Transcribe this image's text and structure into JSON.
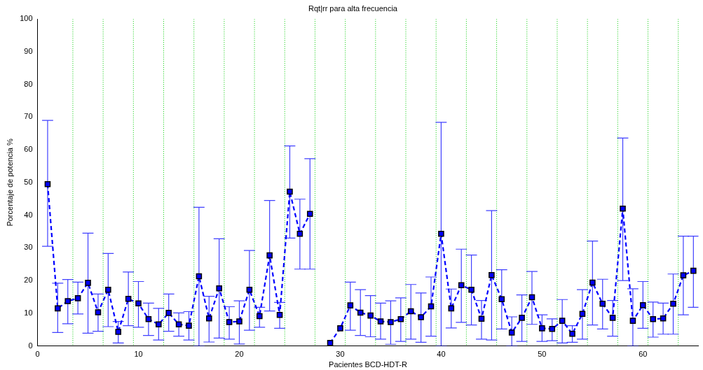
{
  "chart_data": {
    "type": "line",
    "title": "Rqt|rr para alta frecuencia",
    "xlabel": "Pacientes BCD-HDT-R",
    "ylabel": "Porcentaje de potencia %",
    "x": [
      1,
      2,
      3,
      4,
      5,
      6,
      7,
      8,
      9,
      10,
      11,
      12,
      13,
      14,
      15,
      16,
      17,
      18,
      19,
      20,
      21,
      22,
      23,
      24,
      25,
      26,
      27,
      28,
      29,
      30,
      31,
      32,
      33,
      34,
      35,
      36,
      37,
      38,
      39,
      40,
      41,
      42,
      43,
      44,
      45,
      46,
      47,
      48,
      49,
      50,
      51,
      52,
      53,
      54,
      55,
      56,
      57,
      58,
      59,
      60,
      61,
      62,
      63,
      64,
      65
    ],
    "series": [
      {
        "color": "#0000ff",
        "marker": "square",
        "line_style": "dashed",
        "values": [
          49.5,
          11.5,
          13.7,
          14.6,
          19.3,
          10.3,
          17.2,
          4.3,
          14.4,
          13.0,
          8.2,
          6.6,
          10.1,
          6.6,
          6.2,
          21.3,
          8.4,
          17.6,
          7.3,
          7.5,
          17.2,
          9.1,
          27.7,
          9.5,
          47.2,
          34.3,
          40.4,
          null,
          0.9,
          5.4,
          12.4,
          10.2,
          9.3,
          7.5,
          7.3,
          8.2,
          10.6,
          8.8,
          12.1,
          34.3,
          11.5,
          18.6,
          17.2,
          8.3,
          21.7,
          14.3,
          4.1,
          8.6,
          14.9,
          5.4,
          5.2,
          7.7,
          3.7,
          9.8,
          19.4,
          12.9,
          8.6,
          42.0,
          7.7,
          12.5,
          8.2,
          8.4,
          12.9,
          21.6,
          23.0
        ],
        "errors": [
          [
            30.5,
            69.0
          ],
          [
            4.1,
            19.2
          ],
          [
            6.8,
            20.3
          ],
          [
            9.8,
            19.5
          ],
          [
            3.9,
            34.5
          ],
          [
            4.5,
            15.9
          ],
          [
            5.9,
            28.3
          ],
          [
            0.9,
            7.5
          ],
          [
            6.2,
            22.6
          ],
          [
            5.7,
            19.7
          ],
          [
            3.2,
            13.1
          ],
          [
            1.8,
            11.5
          ],
          [
            4.5,
            15.9
          ],
          [
            3.0,
            10.1
          ],
          [
            1.8,
            10.5
          ],
          [
            0,
            42.4
          ],
          [
            1.2,
            15.2
          ],
          [
            2.4,
            32.8
          ],
          [
            2.1,
            12.0
          ],
          [
            0.6,
            13.8
          ],
          [
            4.8,
            29.2
          ],
          [
            5.7,
            11.8
          ],
          [
            10.7,
            44.5
          ],
          [
            5.4,
            13.3
          ],
          [
            33.0,
            61.2
          ],
          [
            23.5,
            44.9
          ],
          [
            23.5,
            57.3
          ],
          null,
          null,
          null,
          [
            4.8,
            19.5
          ],
          [
            3.2,
            17.2
          ],
          [
            2.8,
            15.4
          ],
          [
            2.1,
            13.1
          ],
          [
            0.5,
            13.8
          ],
          [
            1.4,
            14.7
          ],
          [
            2.1,
            18.8
          ],
          [
            1.1,
            16.2
          ],
          [
            3.0,
            21.1
          ],
          [
            0,
            68.4
          ],
          [
            5.5,
            17.4
          ],
          [
            7.2,
            29.6
          ],
          [
            6.4,
            27.8
          ],
          [
            2.1,
            13.9
          ],
          [
            1.8,
            41.4
          ],
          [
            5.2,
            23.3
          ],
          [
            0,
            8.9
          ],
          [
            1.4,
            15.6
          ],
          [
            6.6,
            22.8
          ],
          [
            1.4,
            9.5
          ],
          [
            1.6,
            8.3
          ],
          [
            0.9,
            14.2
          ],
          [
            1.1,
            6.2
          ],
          [
            2.1,
            17.2
          ],
          [
            6.4,
            32.1
          ],
          [
            5.2,
            20.4
          ],
          [
            3.0,
            13.9
          ],
          [
            20.0,
            63.6
          ],
          [
            0,
            17.5
          ],
          [
            5.4,
            19.7
          ],
          [
            2.7,
            13.4
          ],
          [
            3.6,
            13.1
          ],
          [
            3.6,
            22.0
          ],
          [
            9.5,
            33.6
          ],
          [
            11.8,
            33.6
          ]
        ]
      }
    ],
    "xlim": [
      0,
      65.5
    ],
    "xticks": [
      0,
      10,
      20,
      30,
      40,
      50,
      60
    ],
    "ylim": [
      0,
      100
    ],
    "yticks": [
      0,
      10,
      20,
      30,
      40,
      50,
      60,
      70,
      80,
      90,
      100
    ],
    "grid": false,
    "legend": false,
    "ref_lines": [
      {
        "axis": "x",
        "value": 3.5,
        "color": "#00cc00",
        "line_style": "dotted"
      },
      {
        "axis": "x",
        "value": 6.5,
        "color": "#00cc00",
        "line_style": "dotted"
      },
      {
        "axis": "x",
        "value": 9.5,
        "color": "#00cc00",
        "line_style": "dotted"
      },
      {
        "axis": "x",
        "value": 12.5,
        "color": "#00cc00",
        "line_style": "dotted"
      },
      {
        "axis": "x",
        "value": 15.5,
        "color": "#00cc00",
        "line_style": "dotted"
      },
      {
        "axis": "x",
        "value": 18.5,
        "color": "#00cc00",
        "line_style": "dotted"
      },
      {
        "axis": "x",
        "value": 21.5,
        "color": "#00cc00",
        "line_style": "dotted"
      },
      {
        "axis": "x",
        "value": 24.5,
        "color": "#00cc00",
        "line_style": "dotted"
      },
      {
        "axis": "x",
        "value": 27.5,
        "color": "#00cc00",
        "line_style": "dotted"
      },
      {
        "axis": "x",
        "value": 30.5,
        "color": "#00cc00",
        "line_style": "dotted"
      },
      {
        "axis": "x",
        "value": 33.5,
        "color": "#00cc00",
        "line_style": "dotted"
      },
      {
        "axis": "x",
        "value": 36.5,
        "color": "#00cc00",
        "line_style": "dotted"
      },
      {
        "axis": "x",
        "value": 39.5,
        "color": "#00cc00",
        "line_style": "dotted"
      },
      {
        "axis": "x",
        "value": 42.5,
        "color": "#00cc00",
        "line_style": "dotted"
      },
      {
        "axis": "x",
        "value": 45.5,
        "color": "#00cc00",
        "line_style": "dotted"
      },
      {
        "axis": "x",
        "value": 48.5,
        "color": "#00cc00",
        "line_style": "dotted"
      },
      {
        "axis": "x",
        "value": 51.5,
        "color": "#00cc00",
        "line_style": "dotted"
      },
      {
        "axis": "x",
        "value": 54.5,
        "color": "#00cc00",
        "line_style": "dotted"
      },
      {
        "axis": "x",
        "value": 57.5,
        "color": "#00cc00",
        "line_style": "dotted"
      },
      {
        "axis": "x",
        "value": 60.5,
        "color": "#00cc00",
        "line_style": "dotted"
      },
      {
        "axis": "x",
        "value": 63.5,
        "color": "#00cc00",
        "line_style": "dotted"
      }
    ]
  }
}
